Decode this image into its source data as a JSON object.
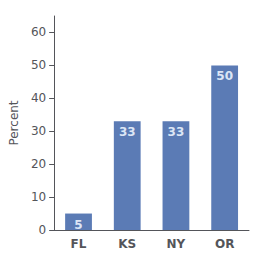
{
  "chart_data": {
    "type": "bar",
    "categories": [
      "FL",
      "KS",
      "NY",
      "OR"
    ],
    "values": [
      5,
      33,
      33,
      50
    ],
    "color": "#5b7bb5",
    "ylabel": "Percent",
    "ylim": [
      0,
      65
    ],
    "yticks": [
      0,
      10,
      20,
      30,
      40,
      50,
      60
    ],
    "grid": false,
    "data_labels": true
  }
}
